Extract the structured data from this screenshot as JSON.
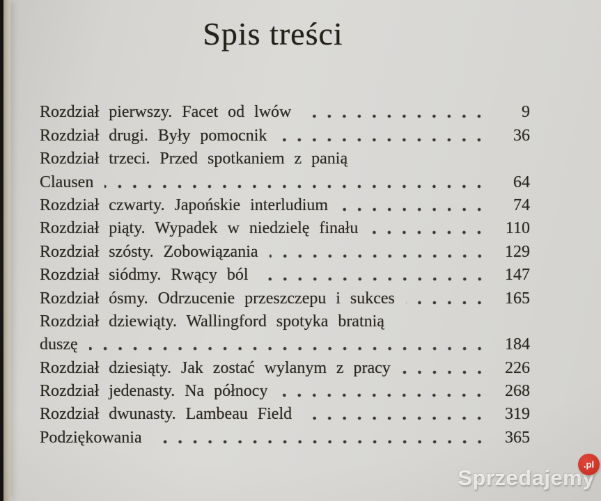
{
  "page": {
    "title": "Spis treści"
  },
  "toc": {
    "entries": [
      {
        "label": "Rozdział pierwszy. Facet od lwów",
        "page": "9"
      },
      {
        "label": "Rozdział drugi. Były pomocnik",
        "page": "36"
      },
      {
        "label": "Rozdział trzeci. Przed spotkaniem z panią",
        "wrap": "Clausen",
        "page": "64"
      },
      {
        "label": "Rozdział czwarty. Japońskie interludium",
        "page": "74"
      },
      {
        "label": "Rozdział piąty. Wypadek w niedzielę finału",
        "page": "110"
      },
      {
        "label": "Rozdział szósty. Zobowiązania",
        "page": "129"
      },
      {
        "label": "Rozdział siódmy. Rwący ból",
        "page": "147"
      },
      {
        "label": "Rozdział ósmy. Odrzucenie przeszczepu i sukces",
        "page": "165"
      },
      {
        "label": "Rozdział dziewiąty. Wallingford spotyka bratnią",
        "wrap": "duszę",
        "page": "184"
      },
      {
        "label": "Rozdział dziesiąty. Jak zostać wylanym z pracy",
        "page": "226"
      },
      {
        "label": "Rozdział jedenasty. Na północy",
        "page": "268"
      },
      {
        "label": "Rozdział dwunasty. Lambeau Field",
        "page": "319"
      },
      {
        "label": "Podziękowania",
        "page": "365"
      }
    ]
  },
  "watermark": {
    "brand": "Sprzedajemy",
    "tld": ".pl",
    "badge_color": "#d63a2e",
    "text_color": "#ffffff"
  }
}
